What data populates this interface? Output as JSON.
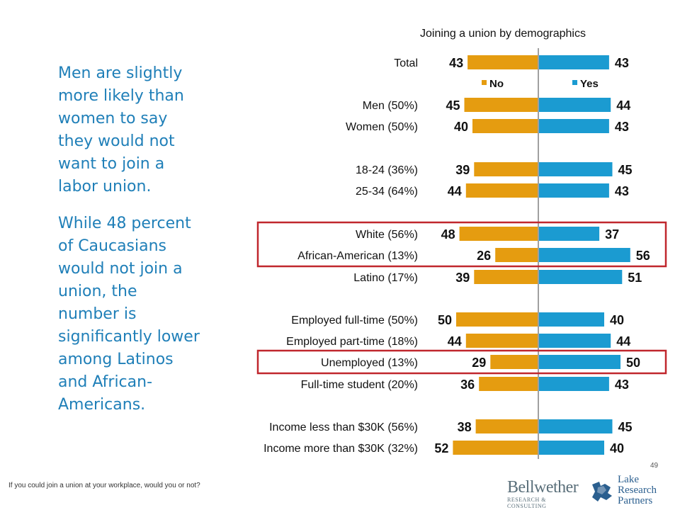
{
  "side_text": {
    "para1": "Men are slightly more likely than women to say they would not want to join a labor union.",
    "para2": "While 48 percent of Caucasians would not join a union, the number is significantly lower among Latinos and African-Americans."
  },
  "footnote": "If you could join a union at your workplace, would you or not?",
  "page_number": "49",
  "logos": {
    "bellwether_name": "Bellwether",
    "bellwether_sub": "RESEARCH & CONSULTING",
    "lake_line1": "Lake",
    "lake_line2": "Research",
    "lake_line3": "Partners"
  },
  "colors": {
    "no": "#e59c10",
    "yes": "#1b9bd1",
    "highlight": "#c0272d",
    "text": "#111111"
  },
  "chart_data": {
    "type": "bar",
    "orientation": "horizontal-diverging",
    "title": "Joining a union by demographics",
    "legend": [
      "No",
      "Yes"
    ],
    "legend_position": "top",
    "series_names": [
      "No",
      "Yes"
    ],
    "grid": false,
    "rows": [
      {
        "label": "Total",
        "no": 43,
        "yes": 43,
        "group": 0
      },
      {
        "label": "Men (50%)",
        "no": 45,
        "yes": 44,
        "group": 1
      },
      {
        "label": "Women (50%)",
        "no": 40,
        "yes": 43,
        "group": 1
      },
      {
        "label": "18-24 (36%)",
        "no": 39,
        "yes": 45,
        "group": 2
      },
      {
        "label": "25-34 (64%)",
        "no": 44,
        "yes": 43,
        "group": 2
      },
      {
        "label": "White (56%)",
        "no": 48,
        "yes": 37,
        "group": 3,
        "highlight": true
      },
      {
        "label": "African-American (13%)",
        "no": 26,
        "yes": 56,
        "group": 3,
        "highlight": true
      },
      {
        "label": "Latino (17%)",
        "no": 39,
        "yes": 51,
        "group": 3
      },
      {
        "label": "Employed full-time (50%)",
        "no": 50,
        "yes": 40,
        "group": 4
      },
      {
        "label": "Employed part-time (18%)",
        "no": 44,
        "yes": 44,
        "group": 4
      },
      {
        "label": "Unemployed (13%)",
        "no": 29,
        "yes": 50,
        "group": 4,
        "highlight": true
      },
      {
        "label": "Full-time student (20%)",
        "no": 36,
        "yes": 43,
        "group": 4
      },
      {
        "label": "Income less than $30K (56%)",
        "no": 38,
        "yes": 45,
        "group": 5
      },
      {
        "label": "Income more than $30K (32%)",
        "no": 52,
        "yes": 40,
        "group": 5
      }
    ]
  }
}
